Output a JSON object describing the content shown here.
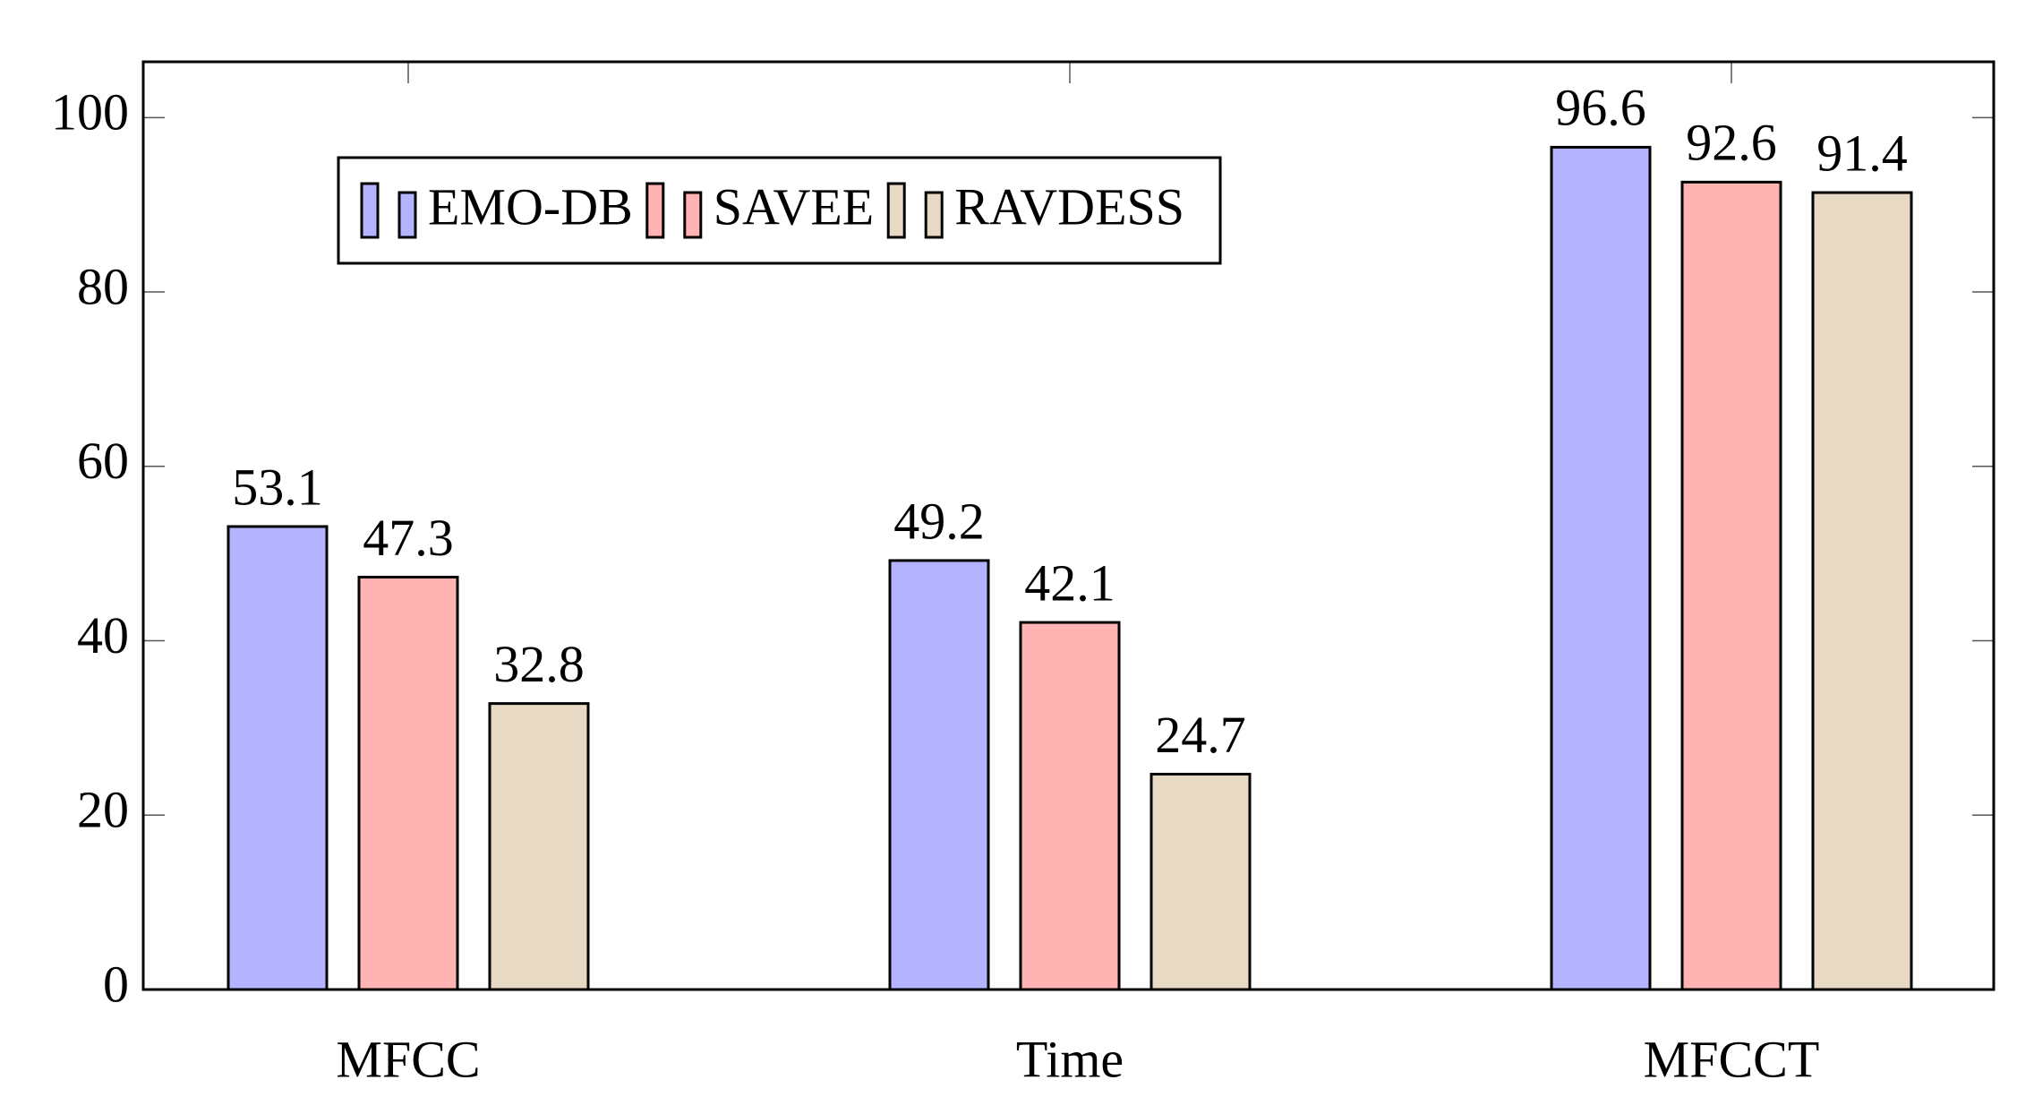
{
  "chart_data": {
    "type": "bar",
    "categories": [
      "MFCC",
      "Time",
      "MFCCT"
    ],
    "series": [
      {
        "name": "EMO-DB",
        "color": "#b3b3ff",
        "values": [
          53.1,
          49.2,
          96.6
        ]
      },
      {
        "name": "SAVEE",
        "color": "#ffb3b3",
        "values": [
          47.3,
          42.1,
          92.6
        ]
      },
      {
        "name": "RAVDESS",
        "color": "#e8d9c4",
        "values": [
          32.8,
          24.7,
          91.4
        ]
      }
    ],
    "ylim": [
      0,
      106.4
    ],
    "yticks": [
      0,
      20,
      40,
      60,
      80,
      100
    ],
    "legend": "upper left"
  }
}
